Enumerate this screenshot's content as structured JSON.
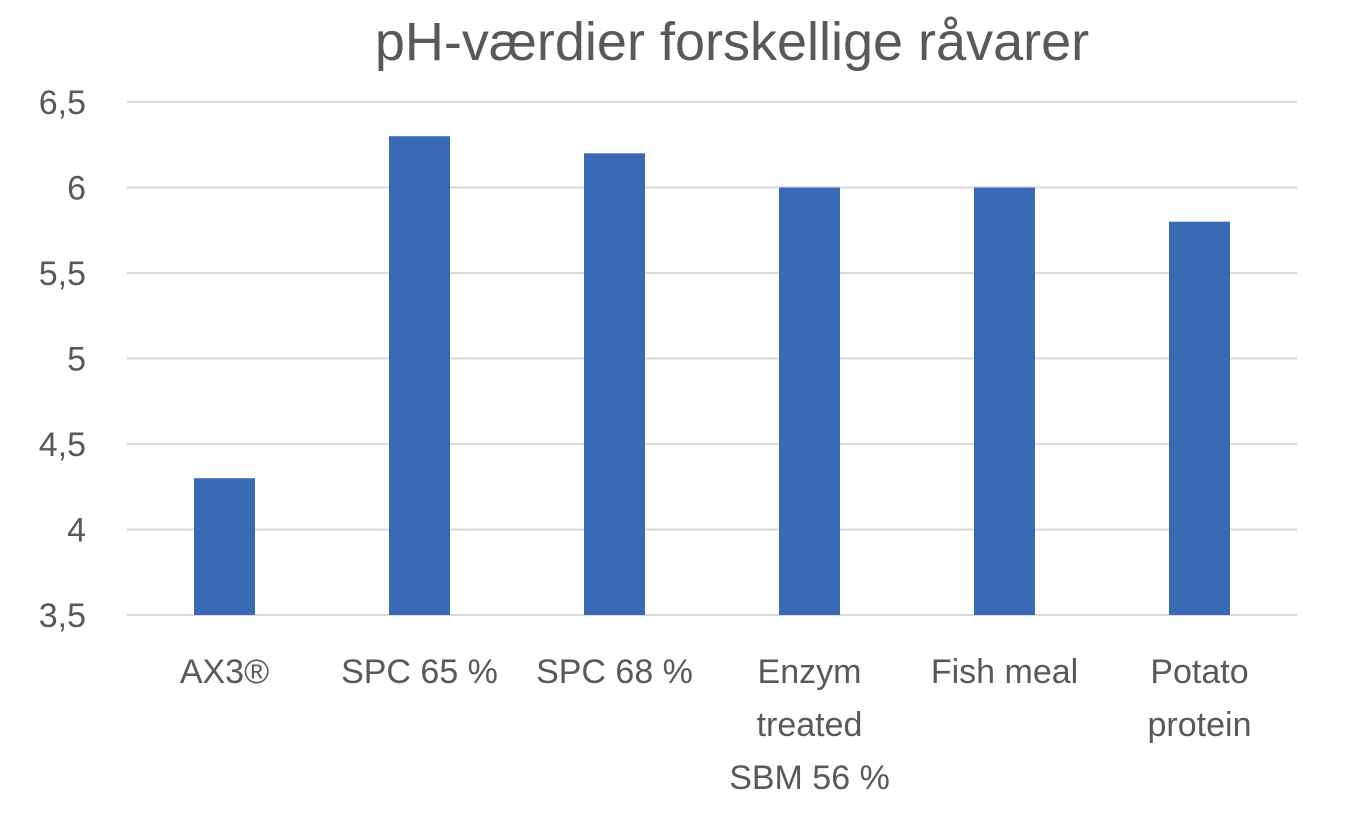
{
  "chart_data": {
    "type": "bar",
    "title": "pH-værdier forskellige råvarer",
    "categories": [
      [
        "AX3®"
      ],
      [
        "SPC 65 %"
      ],
      [
        "SPC 68 %"
      ],
      [
        "Enzym",
        "treated",
        "SBM 56 %"
      ],
      [
        "Fish meal"
      ],
      [
        "Potato",
        "protein"
      ]
    ],
    "values": [
      4.3,
      6.3,
      6.2,
      6.0,
      6.0,
      5.8
    ],
    "ylim": [
      3.5,
      6.5
    ],
    "yticks": [
      "3,5",
      "4",
      "4,5",
      "5",
      "5,5",
      "6",
      "6,5"
    ],
    "grid": true,
    "legend": "none",
    "bar_color": "#3A6AB6",
    "grid_color": "#D9D9D9",
    "text_color": "#595959"
  }
}
